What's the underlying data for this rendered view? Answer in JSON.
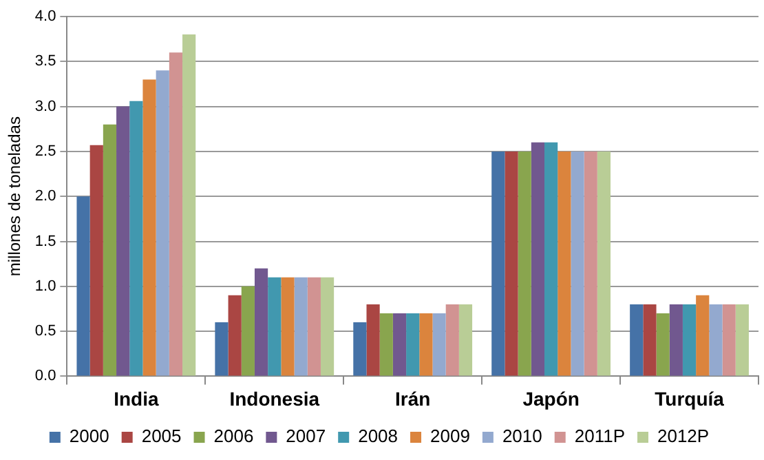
{
  "chart_data": {
    "type": "bar",
    "ylabel": "millones de toneladas",
    "categories": [
      "India",
      "Indonesia",
      "Irán",
      "Japón",
      "Turquía"
    ],
    "series": [
      {
        "name": "2000",
        "color": "#4572a7",
        "values": [
          2.0,
          0.6,
          0.6,
          2.5,
          0.8
        ]
      },
      {
        "name": "2005",
        "color": "#aa4643",
        "values": [
          2.57,
          0.9,
          0.8,
          2.5,
          0.8
        ]
      },
      {
        "name": "2006",
        "color": "#89a54e",
        "values": [
          2.8,
          1.0,
          0.7,
          2.5,
          0.7
        ]
      },
      {
        "name": "2007",
        "color": "#71588f",
        "values": [
          3.0,
          1.2,
          0.7,
          2.6,
          0.8
        ]
      },
      {
        "name": "2008",
        "color": "#4198af",
        "values": [
          3.06,
          1.1,
          0.7,
          2.6,
          0.8
        ]
      },
      {
        "name": "2009",
        "color": "#db843d",
        "values": [
          3.3,
          1.1,
          0.7,
          2.5,
          0.9
        ]
      },
      {
        "name": "2010",
        "color": "#93a9cf",
        "values": [
          3.4,
          1.1,
          0.7,
          2.5,
          0.8
        ]
      },
      {
        "name": "2011P",
        "color": "#d19392",
        "values": [
          3.6,
          1.1,
          0.8,
          2.5,
          0.8
        ]
      },
      {
        "name": "2012P",
        "color": "#b9cd96",
        "values": [
          3.8,
          1.1,
          0.8,
          2.5,
          0.8
        ]
      }
    ],
    "ylim": [
      0,
      4
    ],
    "yticks": [
      {
        "value": 0,
        "label": "0.0"
      },
      {
        "value": 0.5,
        "label": "0.5"
      },
      {
        "value": 1,
        "label": "1.0"
      },
      {
        "value": 1.5,
        "label": "1.5"
      },
      {
        "value": 2,
        "label": "2.0"
      },
      {
        "value": 2.5,
        "label": "2.5"
      },
      {
        "value": 3,
        "label": "3.0"
      },
      {
        "value": 3.5,
        "label": "3.5"
      },
      {
        "value": 4,
        "label": "4.0"
      }
    ],
    "grid": "y",
    "legend": "bottom"
  }
}
